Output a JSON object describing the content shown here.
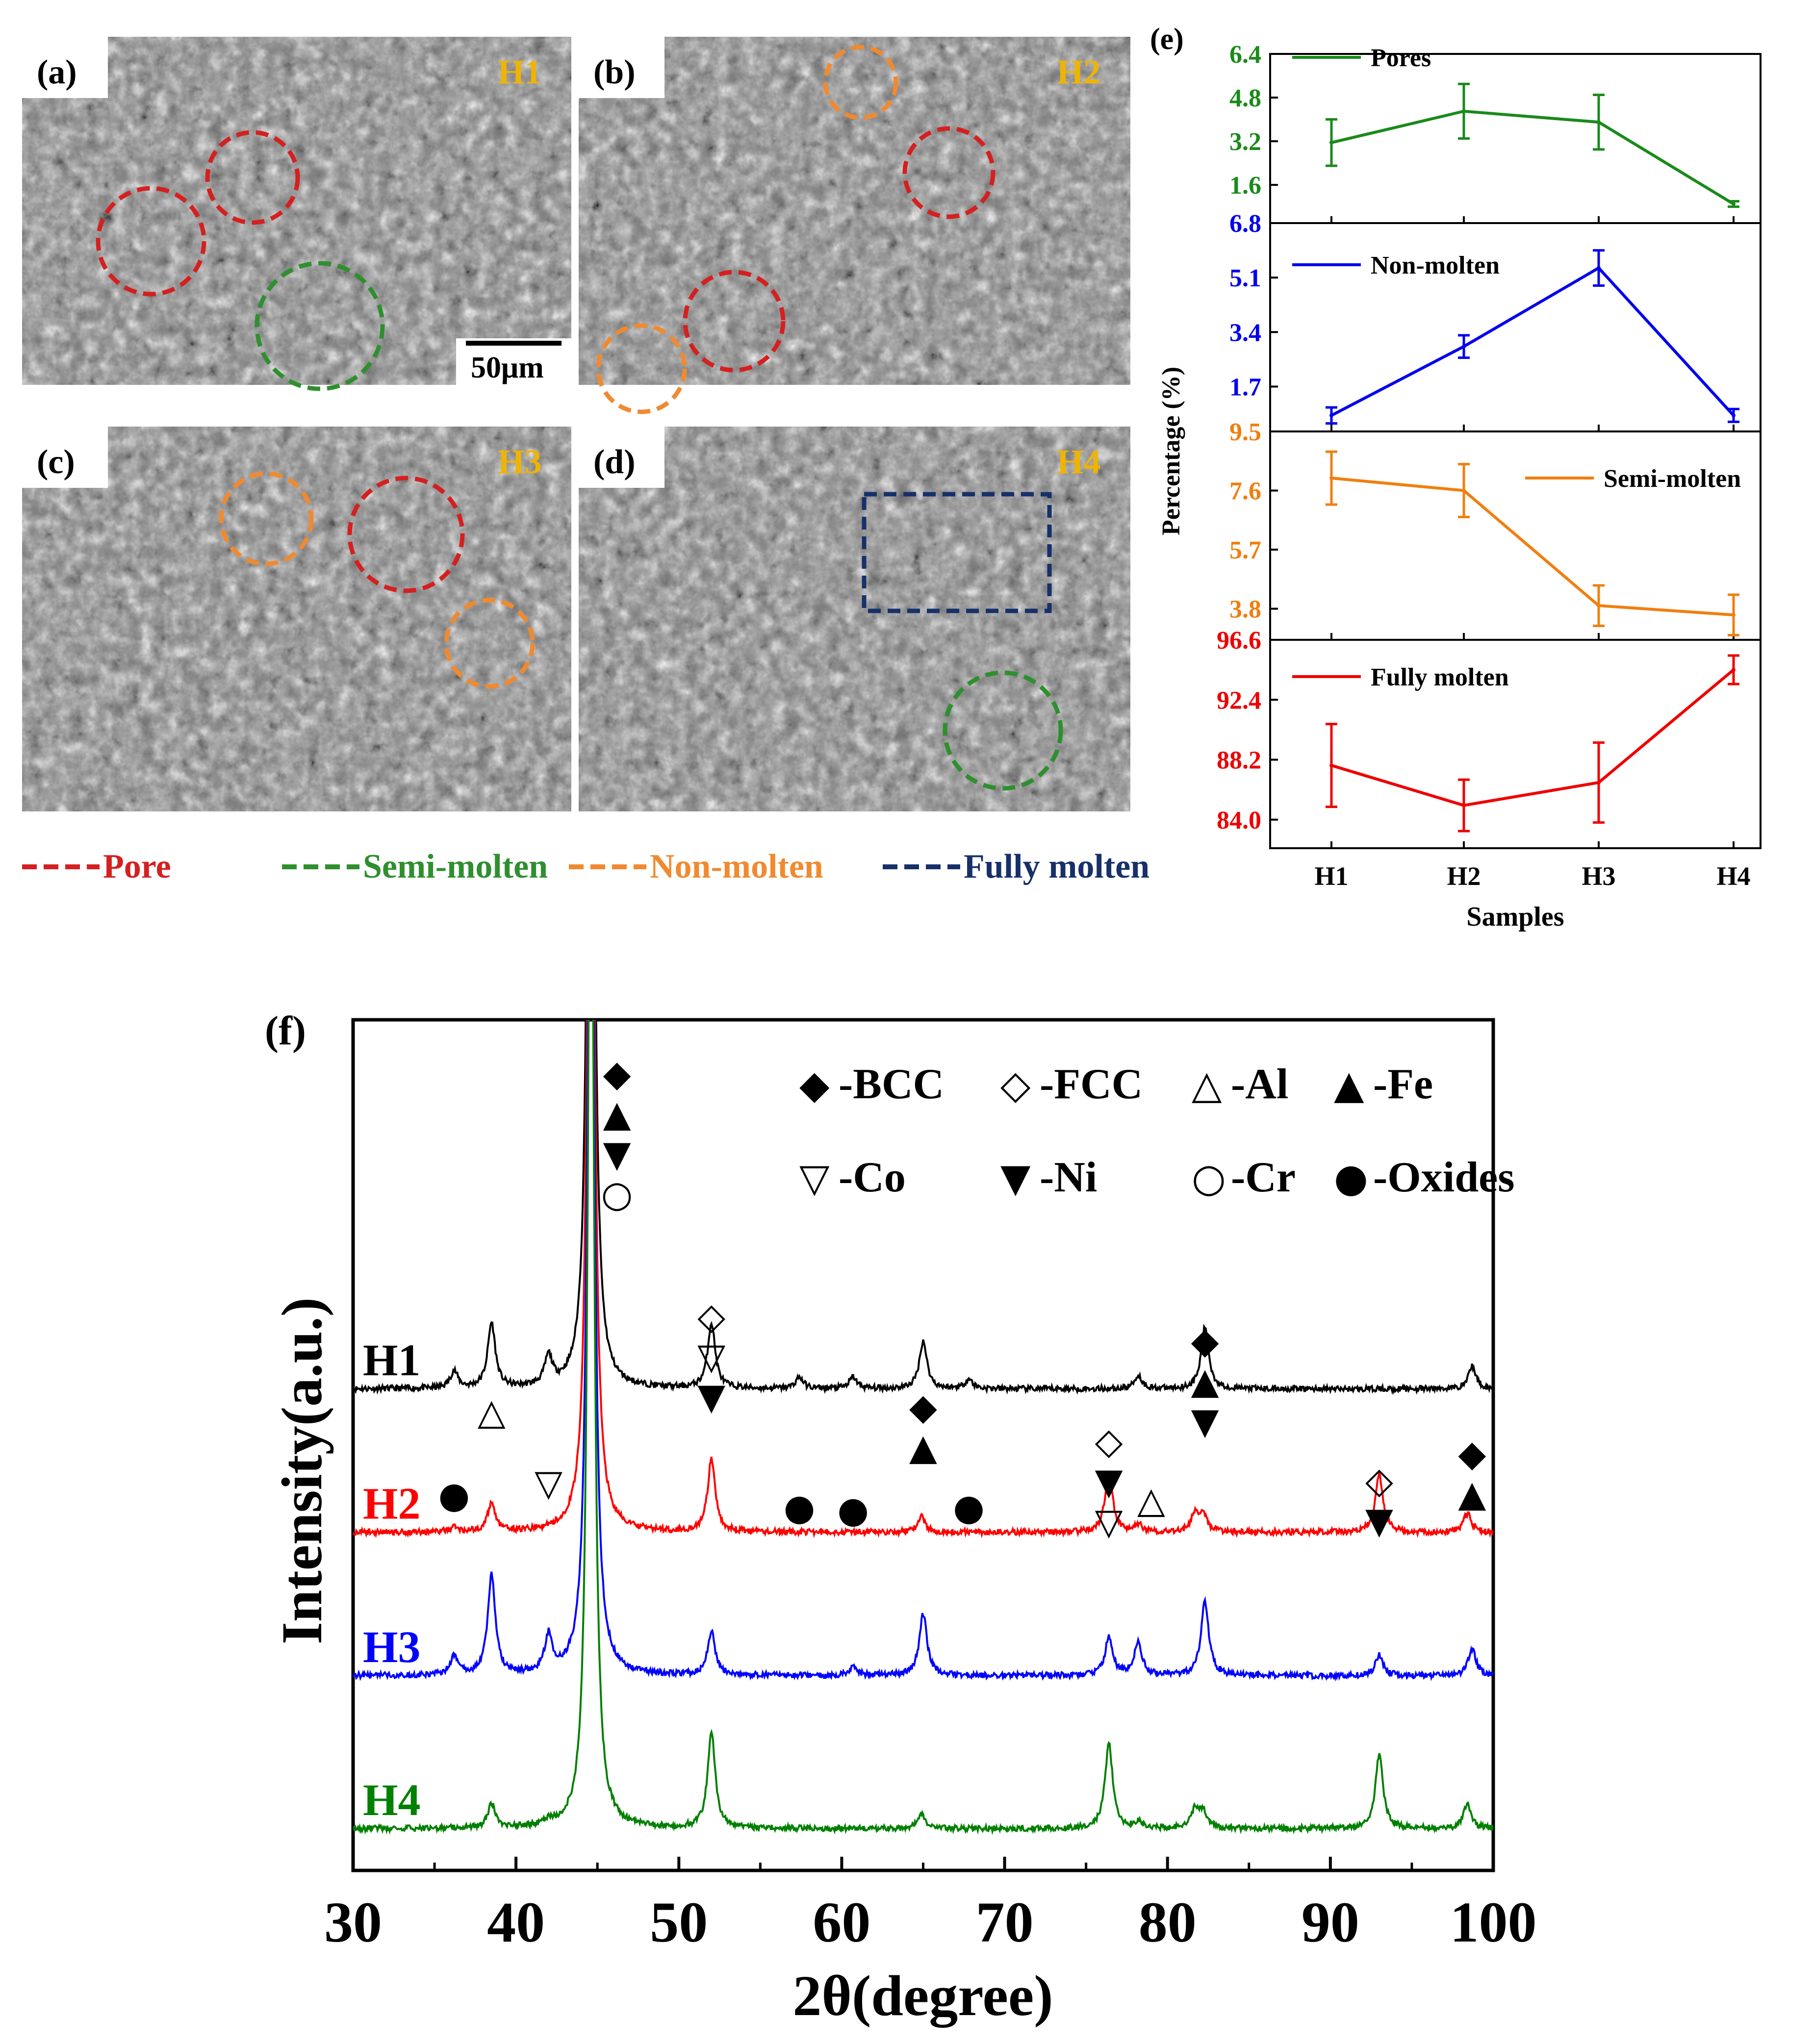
{
  "colors": {
    "pore": "#d42020",
    "semi_molten": "#2f8f2f",
    "non_molten": "#f08a30",
    "fully_molten": "#17306a",
    "sample_tag": "#f0b400",
    "H1": "#000000",
    "H2": "#ff0000",
    "H3": "#0000ff",
    "H4": "#008000"
  },
  "sem_panels": [
    {
      "id": "a",
      "label": "(a)",
      "sample": "H1",
      "scale_bar": "50μm"
    },
    {
      "id": "b",
      "label": "(b)",
      "sample": "H2",
      "scale_bar": ""
    },
    {
      "id": "c",
      "label": "(c)",
      "sample": "H3",
      "scale_bar": ""
    },
    {
      "id": "d",
      "label": "(d)",
      "sample": "H4",
      "scale_bar": ""
    }
  ],
  "sem_annotations": [
    {
      "panel": "a",
      "feature": "Pore"
    },
    {
      "panel": "a",
      "feature": "Pore"
    },
    {
      "panel": "a",
      "feature": "Semi-molten"
    },
    {
      "panel": "b",
      "feature": "Non-molten"
    },
    {
      "panel": "b",
      "feature": "Pore"
    },
    {
      "panel": "b",
      "feature": "Non-molten"
    },
    {
      "panel": "b",
      "feature": "Pore"
    },
    {
      "panel": "c",
      "feature": "Non-molten"
    },
    {
      "panel": "c",
      "feature": "Pore"
    },
    {
      "panel": "c",
      "feature": "Non-molten"
    },
    {
      "panel": "d",
      "feature": "Fully molten"
    },
    {
      "panel": "d",
      "feature": "Semi-molten"
    }
  ],
  "sem_legend": [
    {
      "label": "Pore",
      "color": "#d42020"
    },
    {
      "label": "Semi-molten",
      "color": "#2f8f2f"
    },
    {
      "label": "Non-molten",
      "color": "#f08a30"
    },
    {
      "label": "Fully molten",
      "color": "#17306a"
    }
  ],
  "chart_data": [
    {
      "id": "e",
      "panel_label": "(e)",
      "type": "line",
      "categories": [
        "H1",
        "H2",
        "H3",
        "H4"
      ],
      "xlabel": "Samples",
      "ylabel": "Percentage (%)",
      "series": [
        {
          "name": "Pores",
          "color": "#1a8a1a",
          "values": [
            3.15,
            4.3,
            3.9,
            0.9
          ],
          "errors": [
            0.85,
            1.0,
            1.0,
            0.1
          ],
          "ylim": [
            0.2,
            6.4
          ],
          "ticks": [
            "6.4",
            "4.8",
            "3.2",
            "1.6"
          ]
        },
        {
          "name": "Non-molten",
          "color": "#0000ee",
          "values": [
            0.8,
            2.95,
            5.4,
            0.8
          ],
          "errors": [
            0.25,
            0.35,
            0.55,
            0.2
          ],
          "ylim": [
            0.3,
            6.8
          ],
          "ticks": [
            "6.8",
            "5.1",
            "3.4",
            "1.7"
          ]
        },
        {
          "name": "Semi-molten",
          "color": "#f07f0f",
          "values": [
            8.0,
            7.6,
            3.9,
            3.6
          ],
          "errors": [
            0.85,
            0.85,
            0.65,
            0.65
          ],
          "ylim": [
            2.8,
            9.5
          ],
          "ticks": [
            "9.5",
            "7.6",
            "5.7",
            "3.8"
          ]
        },
        {
          "name": "Fully molten",
          "color": "#ee0000",
          "values": [
            87.8,
            85.0,
            86.6,
            94.5
          ],
          "errors": [
            2.9,
            1.8,
            2.8,
            1.0
          ],
          "ylim": [
            82.0,
            96.6
          ],
          "ticks": [
            "96.6",
            "92.4",
            "88.2",
            "84.0"
          ]
        }
      ]
    },
    {
      "id": "f",
      "panel_label": "(f)",
      "type": "line",
      "title": "",
      "xlabel": "2θ(degree)",
      "ylabel": "Intensity(a.u.)",
      "xlim": [
        30,
        100
      ],
      "x_ticks": [
        "30",
        "40",
        "50",
        "60",
        "70",
        "80",
        "90",
        "100"
      ],
      "series": [
        {
          "name": "H1",
          "color": "#000000",
          "baseline": 0.0,
          "offset": 4.6,
          "peaks": [
            [
              36.2,
              0.18
            ],
            [
              38.5,
              0.68
            ],
            [
              42.0,
              0.3
            ],
            [
              44.6,
              12.0
            ],
            [
              52.0,
              0.68
            ],
            [
              57.4,
              0.12
            ],
            [
              60.7,
              0.12
            ],
            [
              65.0,
              0.5
            ],
            [
              67.8,
              0.1
            ],
            [
              78.2,
              0.14
            ],
            [
              82.3,
              0.64
            ],
            [
              98.7,
              0.24
            ]
          ]
        },
        {
          "name": "H2",
          "color": "#ff0000",
          "baseline": 0.0,
          "offset": 3.1,
          "peaks": [
            [
              36.2,
              0.05
            ],
            [
              38.5,
              0.3
            ],
            [
              44.6,
              12.0
            ],
            [
              52.0,
              0.75
            ],
            [
              64.9,
              0.16
            ],
            [
              76.4,
              0.62
            ],
            [
              78.2,
              0.08
            ],
            [
              81.7,
              0.2
            ],
            [
              82.2,
              0.18
            ],
            [
              93.0,
              0.6
            ],
            [
              98.4,
              0.2
            ]
          ]
        },
        {
          "name": "H3",
          "color": "#0000ff",
          "baseline": 0.0,
          "offset": 1.6,
          "peaks": [
            [
              36.2,
              0.2
            ],
            [
              38.5,
              1.05
            ],
            [
              42.0,
              0.38
            ],
            [
              44.6,
              12.0
            ],
            [
              52.0,
              0.45
            ],
            [
              60.7,
              0.1
            ],
            [
              65.0,
              0.65
            ],
            [
              76.4,
              0.4
            ],
            [
              78.2,
              0.35
            ],
            [
              82.3,
              0.78
            ],
            [
              93.0,
              0.22
            ],
            [
              98.7,
              0.28
            ]
          ]
        },
        {
          "name": "H4",
          "color": "#008000",
          "baseline": 0.0,
          "offset": 0.0,
          "peaks": [
            [
              38.5,
              0.25
            ],
            [
              42.0,
              0.05
            ],
            [
              44.6,
              12.0
            ],
            [
              52.0,
              1.0
            ],
            [
              64.9,
              0.15
            ],
            [
              76.4,
              0.9
            ],
            [
              78.2,
              0.07
            ],
            [
              81.7,
              0.2
            ],
            [
              82.2,
              0.17
            ],
            [
              93.0,
              0.78
            ],
            [
              98.4,
              0.25
            ]
          ]
        }
      ],
      "legend": [
        [
          {
            "symbol": "◆",
            "label": "-BCC"
          },
          {
            "symbol": "◇",
            "label": "-FCC"
          },
          {
            "symbol": "△",
            "label": "-Al"
          },
          {
            "symbol": "▲",
            "label": "-Fe"
          }
        ],
        [
          {
            "symbol": "▽",
            "label": "-Co"
          },
          {
            "symbol": "▼",
            "label": "-Ni"
          },
          {
            "symbol": "○",
            "label": "-Cr"
          },
          {
            "symbol": "●",
            "label": "-Oxides"
          }
        ]
      ],
      "peak_markers": [
        {
          "x": 36.2,
          "symbols": [
            "●"
          ]
        },
        {
          "x": 38.5,
          "symbols": [
            "△"
          ]
        },
        {
          "x": 42.0,
          "symbols": [
            "▽"
          ]
        },
        {
          "x": 46.2,
          "symbols": [
            "◆",
            "▲",
            "▼",
            "○"
          ]
        },
        {
          "x": 52.0,
          "symbols": [
            "◇",
            "▽",
            "▼"
          ]
        },
        {
          "x": 57.4,
          "symbols": [
            "●"
          ]
        },
        {
          "x": 60.7,
          "symbols": [
            "●"
          ]
        },
        {
          "x": 65.0,
          "symbols": [
            "◆",
            "▲"
          ]
        },
        {
          "x": 67.8,
          "symbols": [
            "●"
          ]
        },
        {
          "x": 76.4,
          "symbols": [
            "◇",
            "▼",
            "▽"
          ]
        },
        {
          "x": 79.0,
          "symbols": [
            "△"
          ]
        },
        {
          "x": 82.3,
          "symbols": [
            "◆",
            "▲",
            "▼"
          ]
        },
        {
          "x": 93.0,
          "symbols": [
            "◇",
            "▼"
          ]
        },
        {
          "x": 98.7,
          "symbols": [
            "◆",
            "▲"
          ]
        }
      ]
    }
  ]
}
